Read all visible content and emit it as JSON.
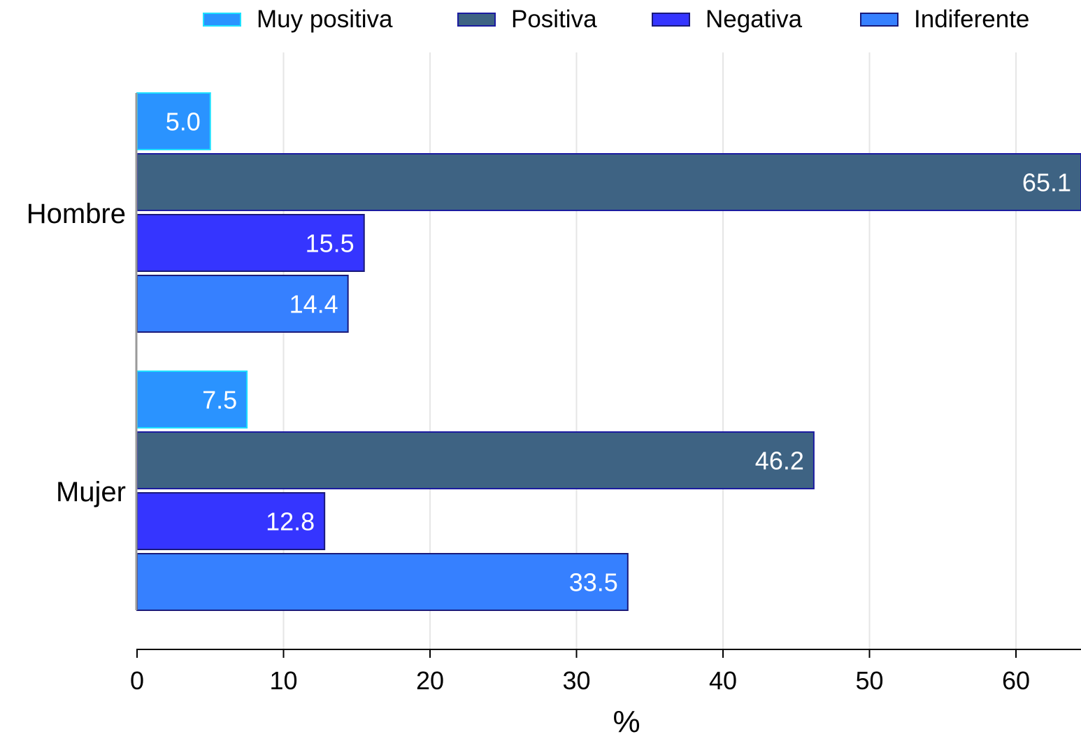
{
  "chart_data": {
    "type": "bar",
    "orientation": "horizontal",
    "categories": [
      "Hombre",
      "Mujer"
    ],
    "series": [
      {
        "name": "Muy positiva",
        "color": "#2a93ff",
        "edge": "#1ee0ff",
        "values": [
          5.0,
          7.5
        ]
      },
      {
        "name": "Positiva",
        "color": "#3e6383",
        "edge": "#1b1ba0",
        "values": [
          65.1,
          46.2
        ]
      },
      {
        "name": "Negativa",
        "color": "#3535ff",
        "edge": "#1a1a7a",
        "values": [
          15.5,
          12.8
        ]
      },
      {
        "name": "Indiferente",
        "color": "#3680ff",
        "edge": "#1a1a7a",
        "values": [
          14.4,
          33.5
        ]
      }
    ],
    "data_labels": [
      [
        "5.0",
        "65.1",
        "15.5",
        "14.4"
      ],
      [
        "7.5",
        "46.2",
        "12.8",
        "33.5"
      ]
    ],
    "xlabel": "%",
    "ylabel": "",
    "xlim": [
      0,
      64.5
    ],
    "xticks": [
      0,
      10,
      20,
      30,
      40,
      50,
      60
    ],
    "grid": "vertical",
    "legend_position": "top"
  }
}
